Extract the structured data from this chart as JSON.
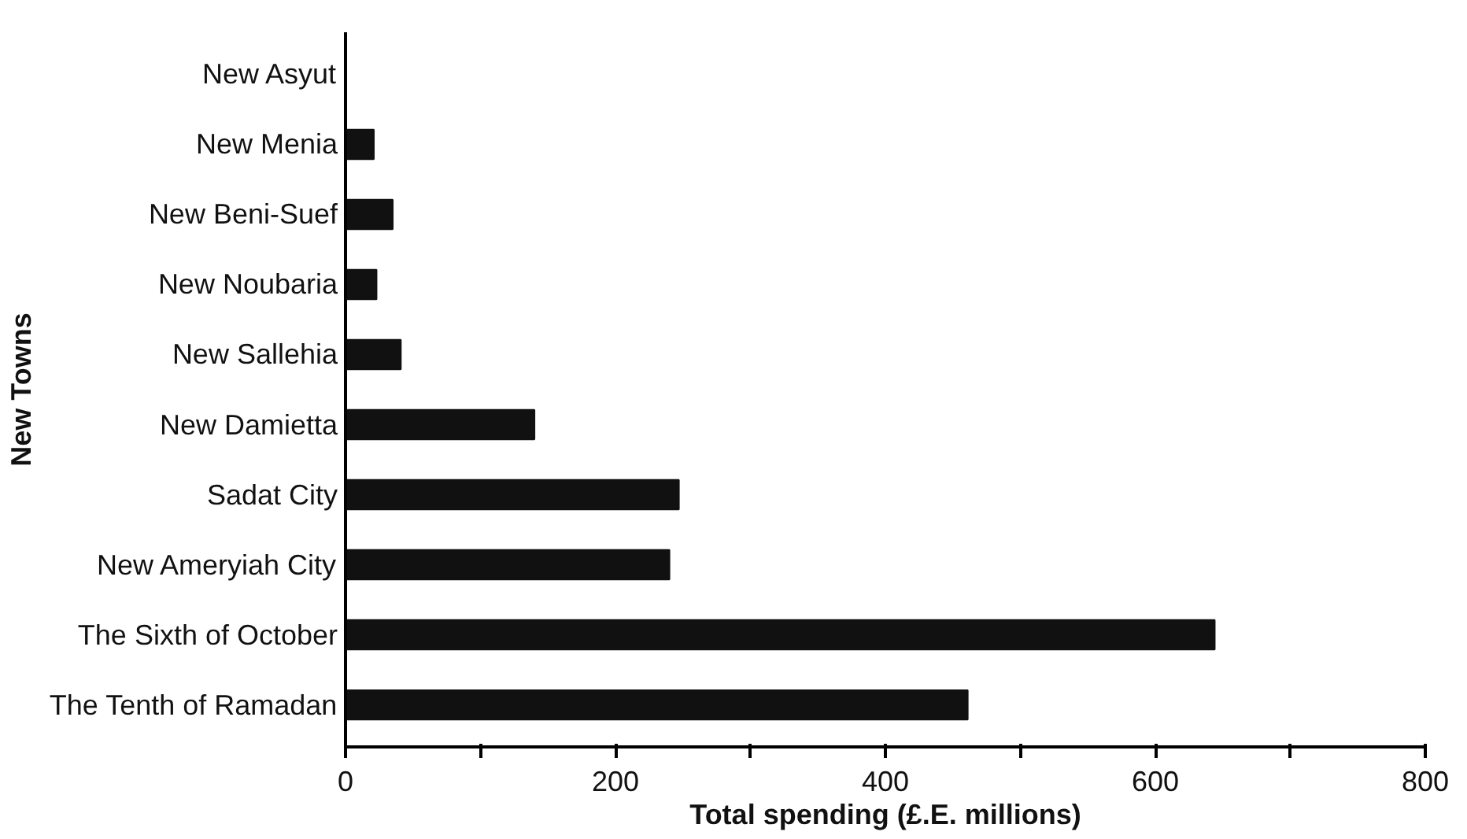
{
  "chart_data": {
    "type": "bar",
    "orientation": "horizontal",
    "xlabel": "Total spending (£.E. millions)",
    "ylabel": "New Towns",
    "categories": [
      "New Asyut",
      "New Menia",
      "New Beni-Suef",
      "New Noubaria",
      "New Sallehia",
      "New Damietta",
      "Sadat City",
      "New Ameryiah City",
      "The Sixth of October",
      "The Tenth of Ramadan"
    ],
    "values": [
      0,
      21,
      35,
      23,
      41,
      140,
      247,
      240,
      644,
      461
    ],
    "color": "#111111",
    "xlim": [
      0,
      800
    ],
    "xticks": [
      0,
      {
        "value": 100,
        "label": null
      },
      200,
      {
        "value": 300,
        "label": null
      },
      400,
      {
        "value": 500,
        "label": null
      },
      600,
      {
        "value": 700,
        "label": null
      },
      800
    ],
    "grid": false
  }
}
